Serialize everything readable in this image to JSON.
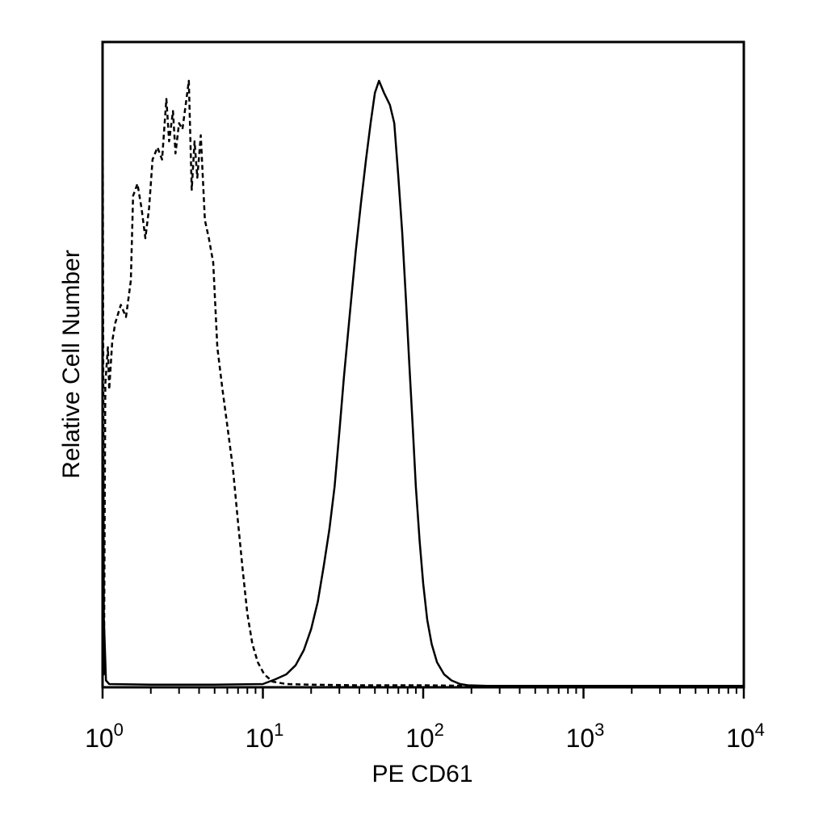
{
  "chart_data": {
    "type": "line",
    "title": "",
    "xlabel": "PE CD61",
    "ylabel": "Relative Cell Number",
    "x_scale": "log",
    "xlim": [
      1,
      10000
    ],
    "ylim": [
      0,
      1.0
    ],
    "x_ticks": [
      {
        "base": "10",
        "exp": "0"
      },
      {
        "base": "10",
        "exp": "1"
      },
      {
        "base": "10",
        "exp": "2"
      },
      {
        "base": "10",
        "exp": "3"
      },
      {
        "base": "10",
        "exp": "4"
      }
    ],
    "grid": false,
    "series": [
      {
        "style": "dashed",
        "color": "#000000",
        "points": [
          [
            1.0,
            1.06
          ],
          [
            1.02,
            0.02
          ],
          [
            1.04,
            0.5
          ],
          [
            1.08,
            0.56
          ],
          [
            1.1,
            0.49
          ],
          [
            1.15,
            0.57
          ],
          [
            1.2,
            0.6
          ],
          [
            1.3,
            0.63
          ],
          [
            1.4,
            0.61
          ],
          [
            1.5,
            0.67
          ],
          [
            1.55,
            0.81
          ],
          [
            1.65,
            0.83
          ],
          [
            1.75,
            0.79
          ],
          [
            1.85,
            0.74
          ],
          [
            1.95,
            0.79
          ],
          [
            2.05,
            0.87
          ],
          [
            2.2,
            0.89
          ],
          [
            2.35,
            0.87
          ],
          [
            2.5,
            0.97
          ],
          [
            2.6,
            0.9
          ],
          [
            2.75,
            0.95
          ],
          [
            2.85,
            0.88
          ],
          [
            3.0,
            0.93
          ],
          [
            3.15,
            0.92
          ],
          [
            3.3,
            0.96
          ],
          [
            3.45,
            1.0
          ],
          [
            3.6,
            0.82
          ],
          [
            3.75,
            0.9
          ],
          [
            3.9,
            0.84
          ],
          [
            4.1,
            0.91
          ],
          [
            4.35,
            0.77
          ],
          [
            4.6,
            0.74
          ],
          [
            4.9,
            0.7
          ],
          [
            5.2,
            0.56
          ],
          [
            5.6,
            0.49
          ],
          [
            6.0,
            0.43
          ],
          [
            6.5,
            0.36
          ],
          [
            7.0,
            0.27
          ],
          [
            7.5,
            0.19
          ],
          [
            8.0,
            0.12
          ],
          [
            8.6,
            0.07
          ],
          [
            9.3,
            0.04
          ],
          [
            10.2,
            0.02
          ],
          [
            11.5,
            0.008
          ],
          [
            14,
            0.004
          ],
          [
            20,
            0.003
          ],
          [
            40,
            0.002
          ],
          [
            100,
            0.002
          ],
          [
            200,
            0.001
          ],
          [
            1000,
            0.001
          ],
          [
            10000,
            0.001
          ]
        ]
      },
      {
        "style": "solid",
        "color": "#000000",
        "points": [
          [
            1.0,
            0.0
          ],
          [
            1.02,
            0.11
          ],
          [
            1.05,
            0.01
          ],
          [
            1.1,
            0.004
          ],
          [
            2,
            0.003
          ],
          [
            5,
            0.003
          ],
          [
            10,
            0.004
          ],
          [
            12,
            0.012
          ],
          [
            14,
            0.02
          ],
          [
            16,
            0.035
          ],
          [
            18,
            0.06
          ],
          [
            20,
            0.095
          ],
          [
            22,
            0.14
          ],
          [
            24,
            0.2
          ],
          [
            26,
            0.26
          ],
          [
            28,
            0.33
          ],
          [
            30,
            0.42
          ],
          [
            32,
            0.51
          ],
          [
            35,
            0.62
          ],
          [
            38,
            0.72
          ],
          [
            41,
            0.8
          ],
          [
            44,
            0.87
          ],
          [
            47,
            0.93
          ],
          [
            50,
            0.98
          ],
          [
            53,
            1.0
          ],
          [
            57,
            0.98
          ],
          [
            62,
            0.96
          ],
          [
            66,
            0.93
          ],
          [
            70,
            0.84
          ],
          [
            74,
            0.75
          ],
          [
            78,
            0.64
          ],
          [
            82,
            0.53
          ],
          [
            86,
            0.43
          ],
          [
            90,
            0.33
          ],
          [
            95,
            0.24
          ],
          [
            100,
            0.17
          ],
          [
            106,
            0.11
          ],
          [
            113,
            0.07
          ],
          [
            122,
            0.04
          ],
          [
            135,
            0.02
          ],
          [
            150,
            0.01
          ],
          [
            170,
            0.004
          ],
          [
            190,
            0.002
          ],
          [
            250,
            0.001
          ],
          [
            1000,
            0.001
          ],
          [
            10000,
            0.001
          ]
        ]
      }
    ]
  }
}
